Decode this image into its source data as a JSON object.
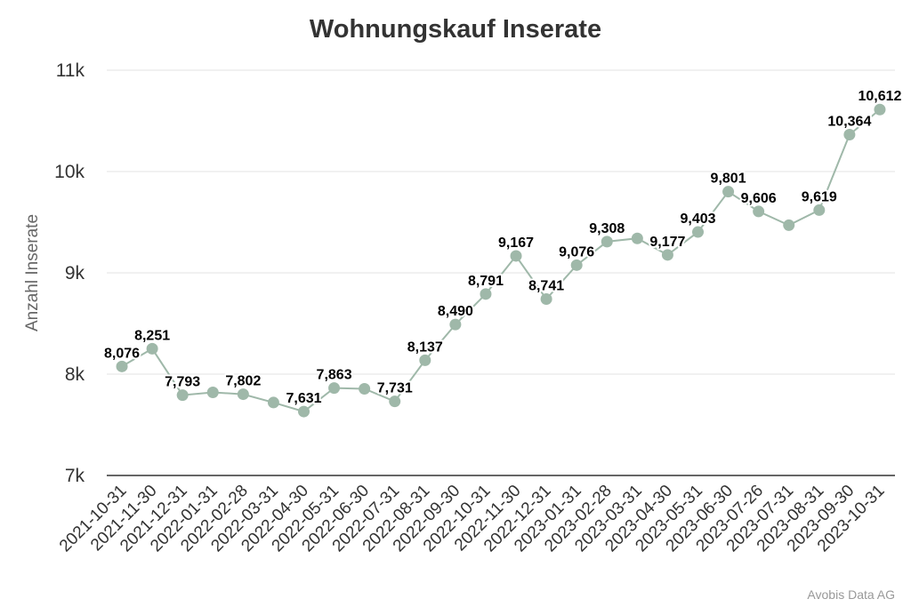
{
  "chart_data": {
    "type": "line",
    "title": "Wohnungskauf Inserate",
    "ylabel": "Anzahl Inserate",
    "xlabel": "",
    "ylim": [
      7000,
      11000
    ],
    "yticks": [
      {
        "value": 7000,
        "label": "7k"
      },
      {
        "value": 8000,
        "label": "8k"
      },
      {
        "value": 9000,
        "label": "9k"
      },
      {
        "value": 10000,
        "label": "10k"
      },
      {
        "value": 11000,
        "label": "11k"
      }
    ],
    "grid": true,
    "line_color": "#9fb8a9",
    "credit": "Avobis Data AG",
    "categories": [
      "2021-10-31",
      "2021-11-30",
      "2021-12-31",
      "2022-01-31",
      "2022-02-28",
      "2022-03-31",
      "2022-04-30",
      "2022-05-31",
      "2022-06-30",
      "2022-07-31",
      "2022-08-31",
      "2022-09-30",
      "2022-10-31",
      "2022-11-30",
      "2022-12-31",
      "2023-01-31",
      "2023-02-28",
      "2023-03-31",
      "2023-04-30",
      "2023-05-31",
      "2023-06-30",
      "2023-07-26",
      "2023-07-31",
      "2023-08-31",
      "2023-09-30",
      "2023-10-31"
    ],
    "series": [
      {
        "values": [
          8076,
          8251,
          7793,
          7820,
          7802,
          7720,
          7631,
          7863,
          7855,
          7731,
          8137,
          8490,
          8791,
          9167,
          8741,
          9076,
          9308,
          9340,
          9177,
          9403,
          9801,
          9606,
          9470,
          9619,
          10364,
          10612
        ],
        "data_labels": [
          "8,076",
          "8,251",
          "7,793",
          "",
          "7,802",
          "",
          "7,631",
          "7,863",
          "",
          "7,731",
          "8,137",
          "8,490",
          "8,791",
          "9,167",
          "8,741",
          "9,076",
          "9,308",
          "",
          "9,177",
          "9,403",
          "9,801",
          "9,606",
          "",
          "9,619",
          "10,364",
          "10,612"
        ]
      }
    ]
  }
}
